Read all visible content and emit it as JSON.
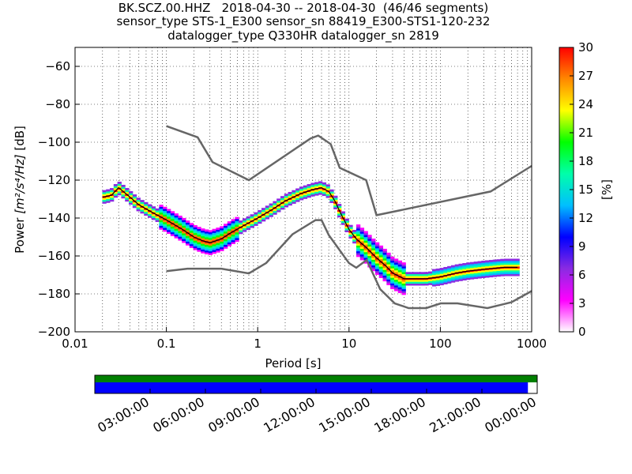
{
  "colors": {
    "reference_lines": "#666666",
    "mean_line": "#000000",
    "availability_green": "#008000",
    "availability_blue": "#0000ff",
    "colorbar_stops": [
      "#ffffff",
      "#ff00ff",
      "#8a2be2",
      "#0000ff",
      "#00bfff",
      "#00ffaa",
      "#00ff00",
      "#ffff00",
      "#ff8800",
      "#ff0000"
    ]
  },
  "chart_data": [
    {
      "type": "heatmap",
      "title_lines": [
        "BK.SCZ.00.HHZ   2018-04-30 -- 2018-04-30  (46/46 segments)",
        "sensor_type STS-1_E300 sensor_sn 88419_E300-STS1-120-232",
        "datalogger_type Q330HR datalogger_sn 2819"
      ],
      "xlabel": "Period [s]",
      "ylabel_main": "Power ",
      "ylabel_math": "[m²/s⁴/Hz]",
      "ylabel_unit": " [dB]",
      "xscale": "log",
      "xlim": [
        0.01,
        1000
      ],
      "ylim": [
        -200,
        -50
      ],
      "xticks": [
        {
          "value": 0.01,
          "label": "0.01"
        },
        {
          "value": 0.1,
          "label": "0.1"
        },
        {
          "value": 1,
          "label": "1"
        },
        {
          "value": 10,
          "label": "10"
        },
        {
          "value": 100,
          "label": "100"
        },
        {
          "value": 1000,
          "label": "1000"
        }
      ],
      "yticks": [
        {
          "value": -60,
          "label": "−60"
        },
        {
          "value": -80,
          "label": "−80"
        },
        {
          "value": -100,
          "label": "−100"
        },
        {
          "value": -120,
          "label": "−120"
        },
        {
          "value": -140,
          "label": "−140"
        },
        {
          "value": -160,
          "label": "−160"
        },
        {
          "value": -180,
          "label": "−180"
        },
        {
          "value": -200,
          "label": "−200"
        }
      ],
      "grid": "dotted",
      "high_noise_model": {
        "x": [
          0.1,
          0.22,
          0.32,
          0.8,
          3.8,
          4.6,
          6.3,
          7.9,
          15.4,
          20,
          354.8,
          1000
        ],
        "y": [
          -91.5,
          -97.4,
          -110.5,
          -120,
          -98,
          -96.5,
          -101,
          -113.5,
          -120,
          -138.5,
          -126,
          -112.5
        ]
      },
      "low_noise_model": {
        "x": [
          0.1,
          0.17,
          0.4,
          0.8,
          1.24,
          2.4,
          4.3,
          5,
          6,
          10,
          12,
          15.6,
          21.9,
          31.6,
          45,
          70,
          101,
          154,
          328,
          600,
          1000
        ],
        "y": [
          -168,
          -166.7,
          -166.7,
          -169.2,
          -163.7,
          -148.6,
          -141.1,
          -141.1,
          -149,
          -163.8,
          -166.2,
          -162.1,
          -177.5,
          -185,
          -187.5,
          -187.5,
          -185,
          -185,
          -187.5,
          -184.4,
          -178.5
        ]
      },
      "mean_psd": {
        "x": [
          0.02,
          0.025,
          0.03,
          0.04,
          0.05,
          0.07,
          0.1,
          0.15,
          0.2,
          0.25,
          0.3,
          0.4,
          0.5,
          0.7,
          1,
          1.5,
          2,
          3,
          4,
          5,
          6,
          7,
          8,
          10,
          12,
          15,
          20,
          25,
          30,
          40,
          50,
          70,
          100,
          150,
          200,
          300,
          500,
          700
        ],
        "y": [
          -129,
          -128,
          -124,
          -129,
          -133,
          -137,
          -141,
          -146,
          -150,
          -152,
          -153,
          -151,
          -148,
          -144,
          -140,
          -135,
          -131,
          -127,
          -125,
          -124,
          -126,
          -131,
          -137,
          -146,
          -151,
          -155,
          -161,
          -165,
          -169,
          -172,
          -172,
          -172,
          -171,
          -169,
          -168,
          -167,
          -166,
          -166
        ]
      },
      "colorbar": {
        "label": "[%]",
        "range": [
          0,
          30
        ],
        "ticks": [
          {
            "value": 0,
            "label": "0"
          },
          {
            "value": 3,
            "label": "3"
          },
          {
            "value": 6,
            "label": "6"
          },
          {
            "value": 9,
            "label": "9"
          },
          {
            "value": 12,
            "label": "12"
          },
          {
            "value": 15,
            "label": "15"
          },
          {
            "value": 18,
            "label": "18"
          },
          {
            "value": 21,
            "label": "21"
          },
          {
            "value": 24,
            "label": "24"
          },
          {
            "value": 27,
            "label": "27"
          },
          {
            "value": 30,
            "label": "30"
          }
        ]
      }
    },
    {
      "type": "bar",
      "description_role": "data availability timeline",
      "time_labels": [
        "03:00:00",
        "06:00:00",
        "09:00:00",
        "12:00:00",
        "15:00:00",
        "18:00:00",
        "21:00:00",
        "00:00:00"
      ],
      "data_coverage_fraction": 1.0,
      "psd_coverage_fraction": 0.979
    }
  ]
}
